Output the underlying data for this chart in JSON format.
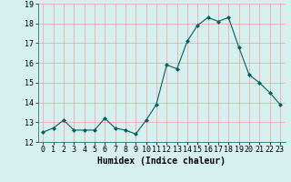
{
  "x": [
    0,
    1,
    2,
    3,
    4,
    5,
    6,
    7,
    8,
    9,
    10,
    11,
    12,
    13,
    14,
    15,
    16,
    17,
    18,
    19,
    20,
    21,
    22,
    23
  ],
  "y": [
    12.5,
    12.7,
    13.1,
    12.6,
    12.6,
    12.6,
    13.2,
    12.7,
    12.6,
    12.4,
    13.1,
    13.9,
    15.9,
    15.7,
    17.1,
    17.9,
    18.3,
    18.1,
    18.3,
    16.8,
    15.4,
    15.0,
    14.5,
    13.9
  ],
  "line_color": "#006060",
  "marker": "D",
  "marker_size": 2,
  "bg_color": "#d6f0f0",
  "grid_color": "#ff9999",
  "xlabel": "Humidex (Indice chaleur)",
  "ylim": [
    12,
    19
  ],
  "xlim": [
    -0.5,
    23.5
  ],
  "yticks": [
    12,
    13,
    14,
    15,
    16,
    17,
    18,
    19
  ],
  "xtick_labels": [
    "0",
    "1",
    "2",
    "3",
    "4",
    "5",
    "6",
    "7",
    "8",
    "9",
    "10",
    "11",
    "12",
    "13",
    "14",
    "15",
    "16",
    "17",
    "18",
    "19",
    "20",
    "21",
    "22",
    "23"
  ],
  "xlabel_fontsize": 7,
  "tick_fontsize": 6,
  "font_family": "monospace"
}
